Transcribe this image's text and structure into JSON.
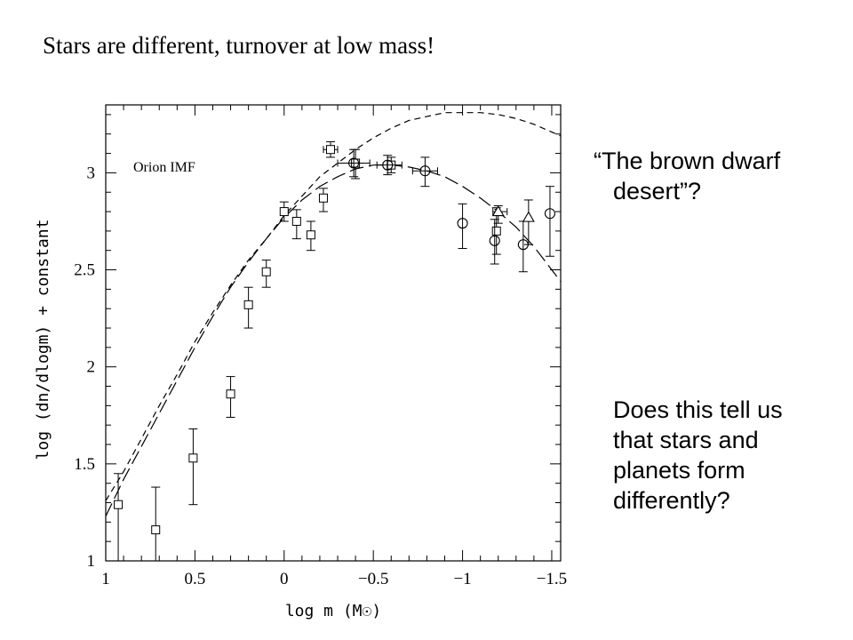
{
  "slide": {
    "title": "Stars are different, turnover at low mass!",
    "quote_line1": "“The brown dwarf",
    "quote_line2": "desert”?",
    "question_lines": [
      "Does this tell us",
      "that stars and",
      "planets form",
      "differently?"
    ]
  },
  "chart_data": {
    "type": "scatter",
    "annotation": "Orion IMF",
    "xlabel": "log m (M☉)",
    "ylabel": "log (dn/dlogm) + constant",
    "xlim": [
      1.0,
      -1.55
    ],
    "ylim": [
      1.0,
      3.35
    ],
    "x_ticks": [
      1,
      0.5,
      0,
      -0.5,
      -1,
      -1.5
    ],
    "x_tick_labels": [
      "1",
      "0.5",
      "0",
      "−0.5",
      "−1",
      "−1.5"
    ],
    "y_ticks": [
      1,
      1.5,
      2,
      2.5,
      3
    ],
    "y_tick_labels": [
      "1",
      "1.5",
      "2",
      "2.5",
      "3"
    ],
    "grid": false,
    "series": [
      {
        "marker": "square",
        "points": [
          {
            "x": 0.93,
            "y": 1.29,
            "ylo": 1.0,
            "yhi": 1.45
          },
          {
            "x": 0.72,
            "y": 1.16,
            "ylo": 0.9,
            "yhi": 1.38
          },
          {
            "x": 0.51,
            "y": 1.53,
            "ylo": 1.29,
            "yhi": 1.68
          },
          {
            "x": 0.3,
            "y": 1.86,
            "ylo": 1.74,
            "yhi": 1.95
          },
          {
            "x": 0.2,
            "y": 2.32,
            "ylo": 2.2,
            "yhi": 2.41
          },
          {
            "x": 0.1,
            "y": 2.49,
            "ylo": 2.41,
            "yhi": 2.55
          },
          {
            "x": 0.0,
            "y": 2.8,
            "ylo": 2.75,
            "yhi": 2.85
          },
          {
            "x": -0.07,
            "y": 2.75,
            "ylo": 2.66,
            "yhi": 2.81
          },
          {
            "x": -0.15,
            "y": 2.68,
            "ylo": 2.6,
            "yhi": 2.75
          },
          {
            "x": -0.22,
            "y": 2.87,
            "ylo": 2.8,
            "yhi": 2.92
          },
          {
            "x": -0.26,
            "y": 3.12,
            "ylo": 3.08,
            "yhi": 3.16,
            "xlo": -0.22,
            "xhi": -0.3
          },
          {
            "x": -0.4,
            "y": 3.05,
            "ylo": 2.97,
            "yhi": 3.12
          },
          {
            "x": -0.6,
            "y": 3.04,
            "ylo": 3.0,
            "yhi": 3.08
          },
          {
            "x": -1.19,
            "y": 2.7,
            "ylo": 2.58,
            "yhi": 2.82
          }
        ]
      },
      {
        "marker": "circle",
        "points": [
          {
            "x": -0.39,
            "y": 3.05,
            "ylo": 2.98,
            "yhi": 3.12,
            "xlo": -0.3,
            "xhi": -0.48
          },
          {
            "x": -0.58,
            "y": 3.04,
            "ylo": 2.99,
            "yhi": 3.09,
            "xlo": -0.52,
            "xhi": -0.66
          },
          {
            "x": -0.79,
            "y": 3.01,
            "ylo": 2.93,
            "yhi": 3.08,
            "xlo": -0.72,
            "xhi": -0.86
          },
          {
            "x": -1.0,
            "y": 2.74,
            "ylo": 2.61,
            "yhi": 2.84
          },
          {
            "x": -1.18,
            "y": 2.65,
            "ylo": 2.53,
            "yhi": 2.76
          },
          {
            "x": -1.34,
            "y": 2.63,
            "ylo": 2.49,
            "yhi": 2.75
          },
          {
            "x": -1.49,
            "y": 2.79,
            "ylo": 2.57,
            "yhi": 2.93
          }
        ]
      },
      {
        "marker": "triangle",
        "points": [
          {
            "x": -1.2,
            "y": 2.8,
            "ylo": 2.74,
            "yhi": 2.83,
            "xlo": -1.17,
            "xhi": -1.25
          },
          {
            "x": -1.37,
            "y": 2.77,
            "ylo": 2.63,
            "yhi": 2.86
          }
        ]
      }
    ],
    "curves": [
      {
        "style": "short-dashed",
        "points": [
          [
            1.0,
            1.31
          ],
          [
            0.9,
            1.46
          ],
          [
            0.8,
            1.63
          ],
          [
            0.7,
            1.8
          ],
          [
            0.6,
            1.96
          ],
          [
            0.5,
            2.13
          ],
          [
            0.4,
            2.28
          ],
          [
            0.3,
            2.42
          ],
          [
            0.2,
            2.55
          ],
          [
            0.1,
            2.66
          ],
          [
            0.0,
            2.78
          ],
          [
            -0.1,
            2.88
          ],
          [
            -0.2,
            2.98
          ],
          [
            -0.3,
            3.05
          ],
          [
            -0.4,
            3.12
          ],
          [
            -0.5,
            3.18
          ],
          [
            -0.6,
            3.23
          ],
          [
            -0.7,
            3.27
          ],
          [
            -0.8,
            3.29
          ],
          [
            -0.9,
            3.31
          ],
          [
            -1.0,
            3.31
          ],
          [
            -1.1,
            3.31
          ],
          [
            -1.2,
            3.3
          ],
          [
            -1.3,
            3.28
          ],
          [
            -1.4,
            3.25
          ],
          [
            -1.55,
            3.19
          ]
        ]
      },
      {
        "style": "long-dashed",
        "points": [
          [
            1.0,
            1.23
          ],
          [
            0.9,
            1.42
          ],
          [
            0.8,
            1.59
          ],
          [
            0.7,
            1.76
          ],
          [
            0.6,
            1.93
          ],
          [
            0.5,
            2.1
          ],
          [
            0.4,
            2.26
          ],
          [
            0.3,
            2.41
          ],
          [
            0.2,
            2.54
          ],
          [
            0.1,
            2.66
          ],
          [
            0.0,
            2.77
          ],
          [
            -0.1,
            2.86
          ],
          [
            -0.2,
            2.93
          ],
          [
            -0.3,
            2.98
          ],
          [
            -0.4,
            3.02
          ],
          [
            -0.5,
            3.04
          ],
          [
            -0.6,
            3.04
          ],
          [
            -0.7,
            3.03
          ],
          [
            -0.8,
            3.01
          ],
          [
            -0.9,
            2.98
          ],
          [
            -1.0,
            2.93
          ],
          [
            -1.1,
            2.87
          ],
          [
            -1.2,
            2.8
          ],
          [
            -1.3,
            2.72
          ],
          [
            -1.4,
            2.62
          ],
          [
            -1.55,
            2.44
          ]
        ]
      }
    ]
  }
}
